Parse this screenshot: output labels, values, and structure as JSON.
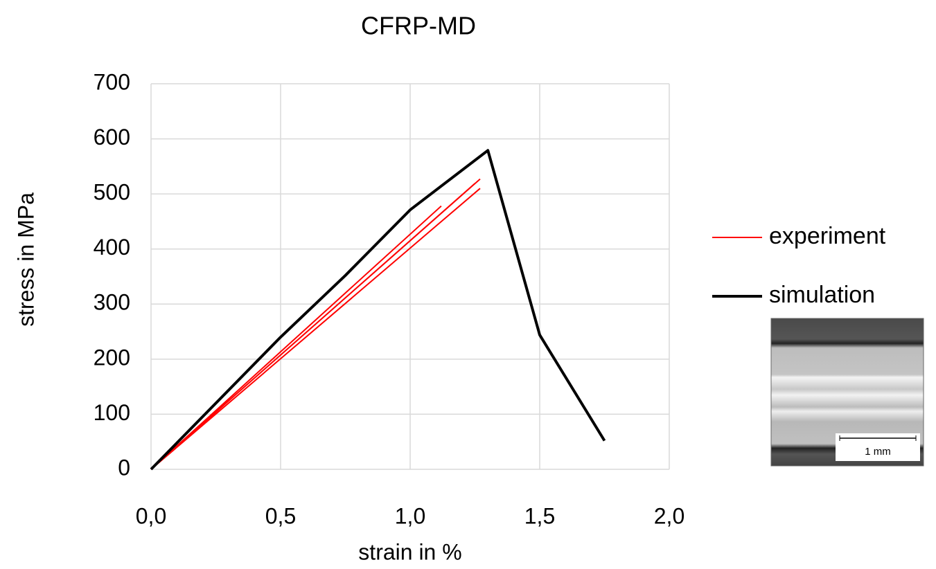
{
  "chart_data": {
    "type": "line",
    "title": "CFRP-MD",
    "xlabel": "strain in %",
    "ylabel": "stress in MPa",
    "xlim": [
      0,
      2
    ],
    "ylim": [
      0,
      700
    ],
    "xticks": [
      {
        "value": 0,
        "label": "0,0"
      },
      {
        "value": 0.5,
        "label": "0,5"
      },
      {
        "value": 1,
        "label": "1,0"
      },
      {
        "value": 1.5,
        "label": "1,5"
      },
      {
        "value": 2,
        "label": "2,0"
      }
    ],
    "yticks": [
      0,
      100,
      200,
      300,
      400,
      500,
      600,
      700
    ],
    "grid": true,
    "legend": "right",
    "series": [
      {
        "name": "experiment",
        "color": "#ff0000",
        "width": 2,
        "x": [
          0,
          1.12,
          null,
          0,
          1.27,
          null,
          0,
          1.27,
          null,
          0,
          1.25
        ],
        "values": [
          0,
          478,
          null,
          0,
          527,
          null,
          0,
          510,
          null,
          0,
          519
        ]
      },
      {
        "name": "simulation",
        "color": "#000000",
        "width": 4,
        "x": [
          0,
          0.5,
          0.75,
          1.0,
          1.3,
          1.5,
          1.75
        ],
        "values": [
          0,
          240,
          352,
          471,
          579,
          244,
          52
        ]
      }
    ],
    "scale_bar_label": "1 mm"
  }
}
